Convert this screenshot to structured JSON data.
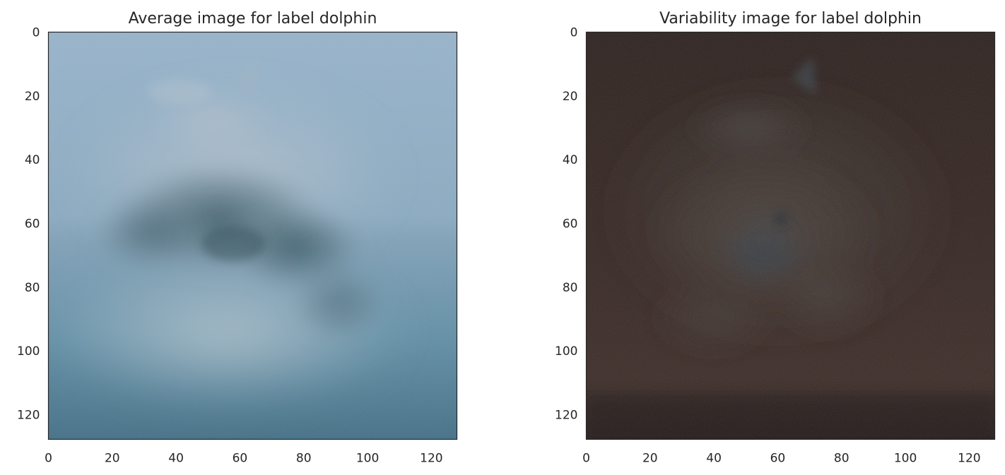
{
  "chart_data": [
    {
      "type": "heatmap",
      "title": "Average image for label dolphin",
      "xlim": [
        0,
        128
      ],
      "ylim": [
        128,
        0
      ],
      "xticks": [
        0,
        20,
        40,
        60,
        80,
        100,
        120
      ],
      "yticks": [
        0,
        20,
        40,
        60,
        80,
        100,
        120
      ],
      "grid": false,
      "colors": {
        "sky_top": "#97b4cc",
        "sky_horizon": "#88a9c1",
        "water": "#5f8ea6",
        "water_bottom": "#416e86",
        "shape": "#2f4f5c",
        "splash": "#c3cfd7"
      }
    },
    {
      "type": "heatmap",
      "title": "Variability image for label dolphin",
      "xlim": [
        0,
        128
      ],
      "ylim": [
        128,
        0
      ],
      "xticks": [
        0,
        20,
        40,
        60,
        80,
        100,
        120
      ],
      "yticks": [
        0,
        20,
        40,
        60,
        80,
        100,
        120
      ],
      "grid": false,
      "colors": {
        "background": "#2b1f1c",
        "mid": "#3a2b27",
        "shape": "#4a4845",
        "shape_core": "#3c4650",
        "bottom": "#2a1d1b"
      }
    }
  ]
}
